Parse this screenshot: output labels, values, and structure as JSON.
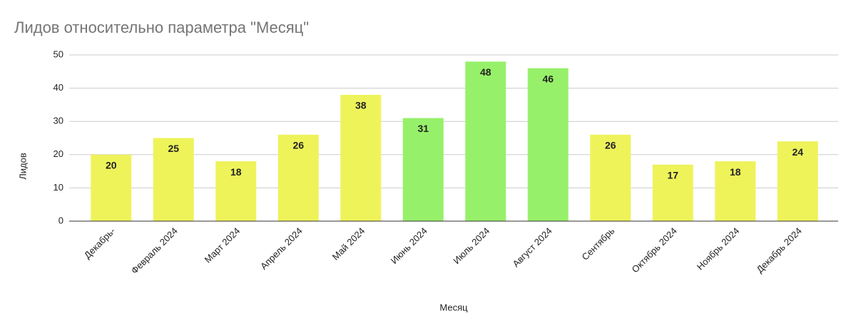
{
  "chart_data": {
    "type": "bar",
    "title": "Лидов относительно параметра \"Месяц\"",
    "x_label": "Месяц",
    "y_label": "Лидов",
    "categories": [
      "Декабрь-",
      "Февраль 2024",
      "Март 2024",
      "Апрель 2024",
      "Май 2024",
      "Июнь 2024",
      "Июль 2024",
      "Август 2024",
      "Сентябрь",
      "Октябрь 2024",
      "Ноябрь 2024",
      "Декабрь 2024"
    ],
    "values": [
      20,
      25,
      18,
      26,
      38,
      31,
      48,
      46,
      26,
      17,
      18,
      24
    ],
    "colors": [
      "#eef35a",
      "#eef35a",
      "#eef35a",
      "#eef35a",
      "#eef35a",
      "#97f06a",
      "#97f06a",
      "#97f06a",
      "#eef35a",
      "#eef35a",
      "#eef35a",
      "#eef35a"
    ],
    "ylim": [
      0,
      50
    ],
    "yticks": [
      0,
      10,
      20,
      30,
      40,
      50
    ],
    "grid": true
  }
}
